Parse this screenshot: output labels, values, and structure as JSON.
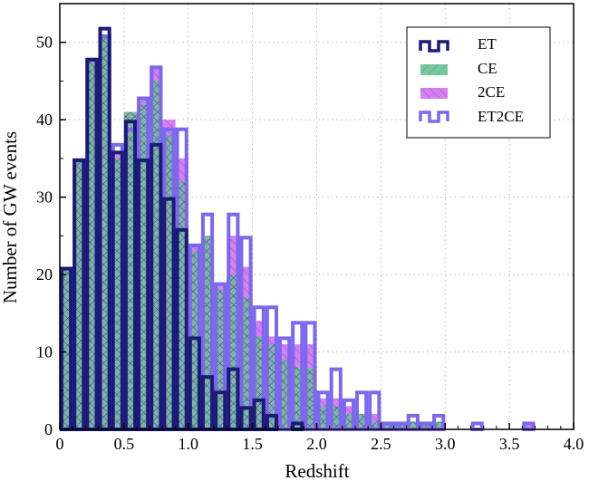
{
  "chart_data": {
    "type": "bar",
    "subtype": "histogram",
    "xlabel": "Redshift",
    "ylabel": "Number of GW events",
    "xlim": [
      0,
      4.0
    ],
    "ylim": [
      0,
      55
    ],
    "xticks": [
      0,
      0.5,
      1.0,
      1.5,
      2.0,
      2.5,
      3.0,
      3.5,
      4.0
    ],
    "xtick_labels": [
      "0",
      "0.5",
      "1.0",
      "1.5",
      "2.0",
      "2.5",
      "3.0",
      "3.5",
      "4.0"
    ],
    "yticks": [
      0,
      10,
      20,
      30,
      40,
      50
    ],
    "ytick_labels": [
      "0",
      "10",
      "20",
      "30",
      "40",
      "50"
    ],
    "grid": true,
    "legend_position": "top-right",
    "bin_width": 0.1,
    "bin_starts": [
      0.0,
      0.1,
      0.2,
      0.3,
      0.4,
      0.5,
      0.6,
      0.7,
      0.8,
      0.9,
      1.0,
      1.1,
      1.2,
      1.3,
      1.4,
      1.5,
      1.6,
      1.7,
      1.8,
      1.9,
      2.0,
      2.1,
      2.2,
      2.3,
      2.4,
      2.5,
      2.6,
      2.7,
      2.8,
      2.9,
      3.0,
      3.1,
      3.2,
      3.3,
      3.4,
      3.5,
      3.6
    ],
    "series": [
      {
        "name": "ET2CE",
        "color": "#7b68ee",
        "style": "outline",
        "values": [
          21,
          35,
          48,
          51,
          37,
          39,
          43,
          47,
          39,
          39,
          24,
          28,
          19,
          28,
          25,
          16,
          16,
          12,
          14,
          14,
          5,
          8,
          4,
          5,
          5,
          1,
          1,
          2,
          1,
          2,
          0,
          0,
          1,
          0,
          0,
          0,
          1
        ]
      },
      {
        "name": "2CE",
        "color": "#d580f0",
        "style": "hatch-back",
        "values": [
          21,
          35,
          48,
          51,
          36,
          41,
          43,
          47,
          40,
          35,
          24,
          25,
          19,
          25,
          21,
          14,
          12,
          11,
          11,
          11,
          4,
          4,
          3,
          2,
          2,
          1,
          1,
          1,
          1,
          1,
          0,
          0,
          0,
          0,
          0,
          0,
          1
        ]
      },
      {
        "name": "CE",
        "color": "#5ccf8e",
        "style": "hatch-forward",
        "values": [
          21,
          35,
          48,
          51,
          35,
          41,
          42,
          45,
          38,
          32,
          23,
          25,
          18,
          20,
          17,
          12,
          11,
          9,
          8,
          8,
          3,
          3,
          2,
          2,
          1,
          1,
          1,
          1,
          1,
          1,
          0,
          0,
          0,
          0,
          0,
          0,
          0
        ]
      },
      {
        "name": "ET",
        "color": "#1a1a7a",
        "style": "outline",
        "values": [
          21,
          35,
          48,
          52,
          36,
          40,
          35,
          37,
          30,
          26,
          12,
          7,
          5,
          8,
          3,
          4,
          2,
          0,
          1,
          0,
          0,
          0,
          0,
          0,
          0,
          0,
          0,
          0,
          0,
          0,
          0,
          0,
          0,
          0,
          0,
          0,
          0
        ]
      }
    ],
    "legend": [
      {
        "label": "ET",
        "color": "#1a1a7a"
      },
      {
        "label": "CE",
        "color": "#5ccf8e"
      },
      {
        "label": "2CE",
        "color": "#d580f0"
      },
      {
        "label": "ET2CE",
        "color": "#7b68ee"
      }
    ]
  }
}
